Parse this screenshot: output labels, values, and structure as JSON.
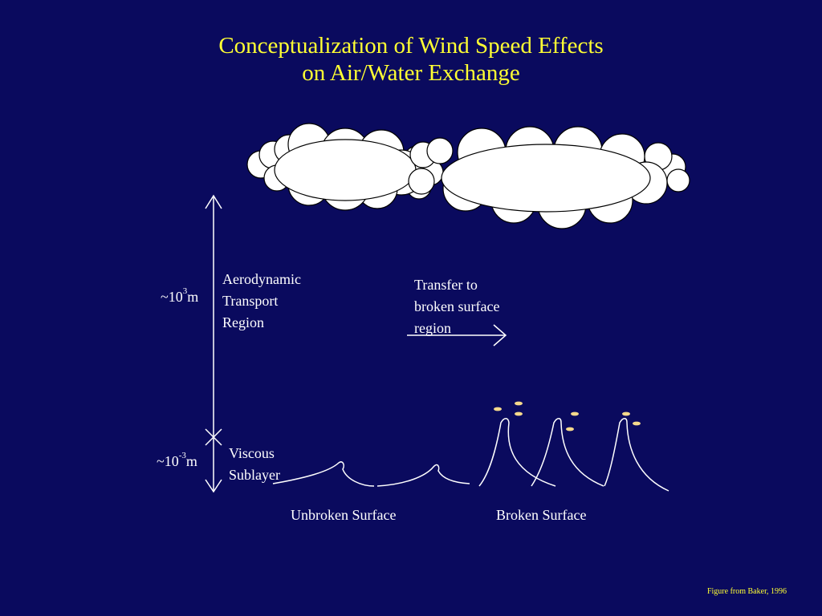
{
  "title": {
    "line1": "Conceptualization of Wind Speed Effects",
    "line2": "on Air/Water Exchange"
  },
  "regions": {
    "aero": {
      "line1": "Aerodynamic",
      "line2": "Transport",
      "line3": "Region"
    },
    "viscous": {
      "line1": "Viscous",
      "line2": "Sublayer"
    }
  },
  "scales": {
    "upper": {
      "prefix": "~10",
      "exp": "3",
      "unit": "m"
    },
    "lower": {
      "prefix": "~10",
      "exp": "-3",
      "unit": "m"
    }
  },
  "transfer": {
    "line1": "Transfer to",
    "line2": "broken surface",
    "line3": "region"
  },
  "captions": {
    "unbroken": "Unbroken Surface",
    "broken": "Broken Surface"
  },
  "credit": "Figure from Baker, 1996",
  "colors": {
    "background": "#0a0a5e",
    "title": "#ffff33",
    "line": "#ffffff",
    "droplet": "#f5d98c"
  }
}
